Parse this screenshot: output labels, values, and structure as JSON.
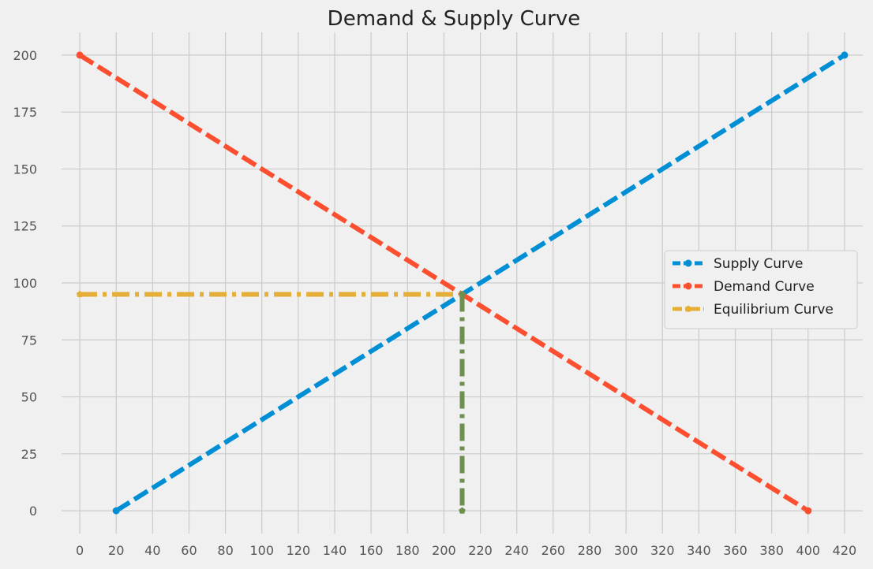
{
  "colors": {
    "background": "#f0f0f0",
    "grid": "#cbcbcb",
    "supply": "#008fd5",
    "demand": "#fc4f30",
    "equilibrium_h": "#e5ae38",
    "equilibrium_v": "#6d904f"
  },
  "chart_data": {
    "type": "line",
    "title": "Demand & Supply Curve",
    "xlabel": "",
    "ylabel": "",
    "xlim": [
      -10,
      430
    ],
    "ylim": [
      -10,
      210
    ],
    "x_ticks": [
      0,
      20,
      40,
      60,
      80,
      100,
      120,
      140,
      160,
      180,
      200,
      220,
      240,
      260,
      280,
      300,
      320,
      340,
      360,
      380,
      400,
      420
    ],
    "y_ticks": [
      0,
      25,
      50,
      75,
      100,
      125,
      150,
      175,
      200
    ],
    "grid": true,
    "legend_position": "center-right",
    "series": [
      {
        "name": "Supply Curve",
        "style": "dashed",
        "marker": "circle",
        "color": "#008fd5",
        "points": [
          [
            20,
            0
          ],
          [
            420,
            200
          ]
        ]
      },
      {
        "name": "Demand Curve",
        "style": "dashed",
        "marker": "circle",
        "color": "#fc4f30",
        "points": [
          [
            0,
            200
          ],
          [
            400,
            0
          ]
        ]
      },
      {
        "name": "Equilibrium Curve",
        "style": "dashdot",
        "marker": "pentagon",
        "color": "#e5ae38",
        "points": [
          [
            0,
            95
          ],
          [
            210,
            95
          ]
        ]
      },
      {
        "style": "dashdot",
        "marker": "pentagon",
        "color": "#6d904f",
        "points": [
          [
            210,
            95
          ],
          [
            210,
            0
          ]
        ]
      }
    ]
  }
}
